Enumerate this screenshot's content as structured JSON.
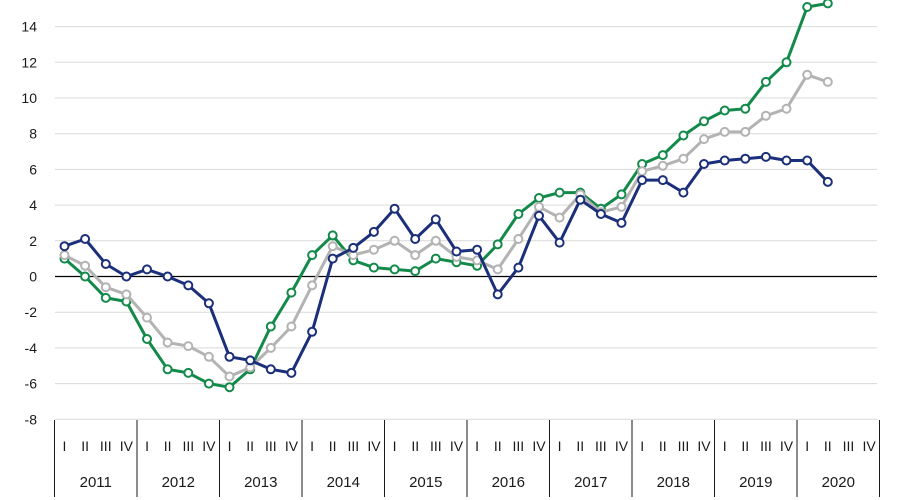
{
  "chart_data": {
    "type": "line",
    "title": "",
    "xlabel": "",
    "ylabel": "",
    "ylim": [
      -8,
      15
    ],
    "yticks": [
      -8,
      -6,
      -4,
      -2,
      0,
      2,
      4,
      6,
      8,
      10,
      12,
      14
    ],
    "grid": "horizontal",
    "legend": "none",
    "years": [
      "2011",
      "2012",
      "2013",
      "2014",
      "2015",
      "2016",
      "2017",
      "2018",
      "2019",
      "2020"
    ],
    "quarter_labels": [
      "I",
      "II",
      "III",
      "IV"
    ],
    "series": [
      {
        "color": "#1b2f7a",
        "values": [
          1.7,
          2.1,
          0.7,
          0.0,
          0.4,
          0.0,
          -0.5,
          -1.5,
          -4.5,
          -4.7,
          -5.2,
          -5.4,
          -3.1,
          1.0,
          1.6,
          2.5,
          3.8,
          2.1,
          3.2,
          1.4,
          1.5,
          -1.0,
          0.5,
          3.4,
          1.9,
          4.3,
          3.5,
          3.0,
          5.4,
          5.4,
          4.7,
          6.3,
          6.5,
          6.6,
          6.7,
          6.5,
          6.5,
          5.3
        ]
      },
      {
        "color": "#b3b3b3",
        "values": [
          1.2,
          0.6,
          -0.6,
          -1.0,
          -2.3,
          -3.7,
          -3.9,
          -4.5,
          -5.6,
          -5.1,
          -4.0,
          -2.8,
          -0.5,
          1.7,
          1.2,
          1.5,
          2.0,
          1.2,
          2.0,
          1.1,
          0.9,
          0.4,
          2.1,
          3.9,
          3.3,
          4.6,
          3.6,
          3.9,
          5.9,
          6.2,
          6.6,
          7.7,
          8.1,
          8.1,
          9.0,
          9.4,
          11.3,
          10.9
        ]
      },
      {
        "color": "#138a4a",
        "values": [
          1.0,
          0.0,
          -1.2,
          -1.4,
          -3.5,
          -5.2,
          -5.4,
          -6.0,
          -6.2,
          -5.2,
          -2.8,
          -0.9,
          1.2,
          2.3,
          0.9,
          0.5,
          0.4,
          0.3,
          1.0,
          0.8,
          0.6,
          1.8,
          3.5,
          4.4,
          4.7,
          4.7,
          3.8,
          4.6,
          6.3,
          6.8,
          7.9,
          8.7,
          9.3,
          9.4,
          10.9,
          12.0,
          15.1,
          15.3
        ]
      }
    ]
  }
}
